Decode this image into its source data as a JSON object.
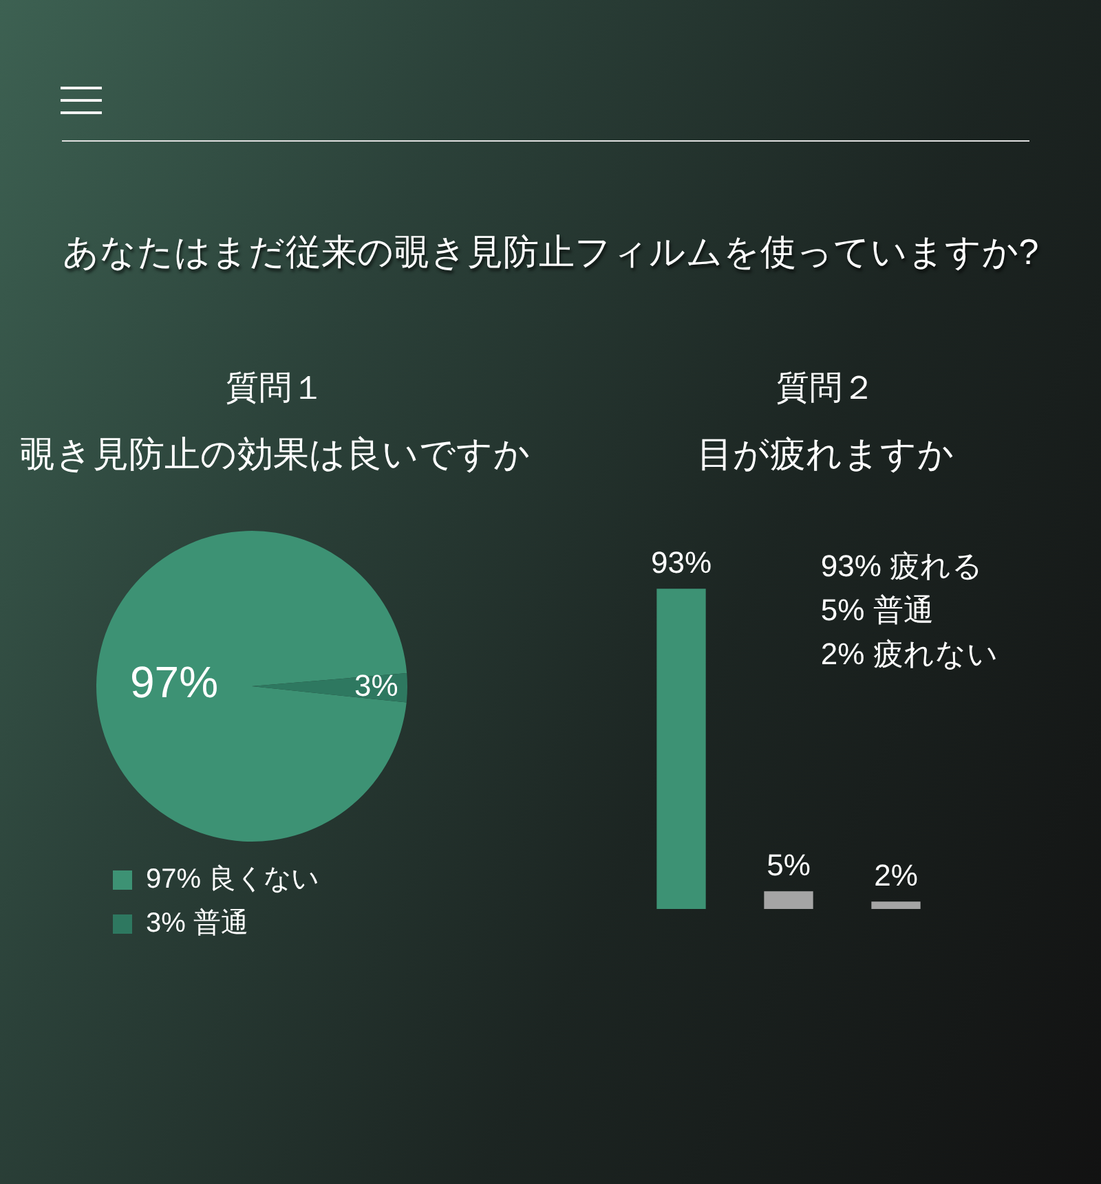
{
  "chart_data": [
    {
      "type": "other",
      "title": "あなたはまだ従来の覗き見防止フィルムを使っていますか?"
    },
    {
      "type": "pie",
      "title": "質問１",
      "subtitle": "覗き見防止の効果は良いですか",
      "categories": [
        "97% 良くない",
        "3% 普通"
      ],
      "values": [
        97,
        3
      ],
      "colors": [
        "#3d9274",
        "#2e7860"
      ],
      "value_labels": [
        "97%",
        "3%"
      ],
      "legend": "bottom"
    },
    {
      "type": "bar",
      "title": "質問２",
      "subtitle": "目が疲れますか",
      "categories": [
        null,
        null,
        null
      ],
      "values": [
        93,
        5,
        2
      ],
      "colors": [
        "#3d9274",
        "#a5a5a5",
        "#a5a5a5"
      ],
      "value_labels": [
        "93%",
        "5%",
        "2%"
      ],
      "annotations": [
        "93% 疲れる",
        "5% 普通",
        "2% 疲れない"
      ]
    }
  ]
}
